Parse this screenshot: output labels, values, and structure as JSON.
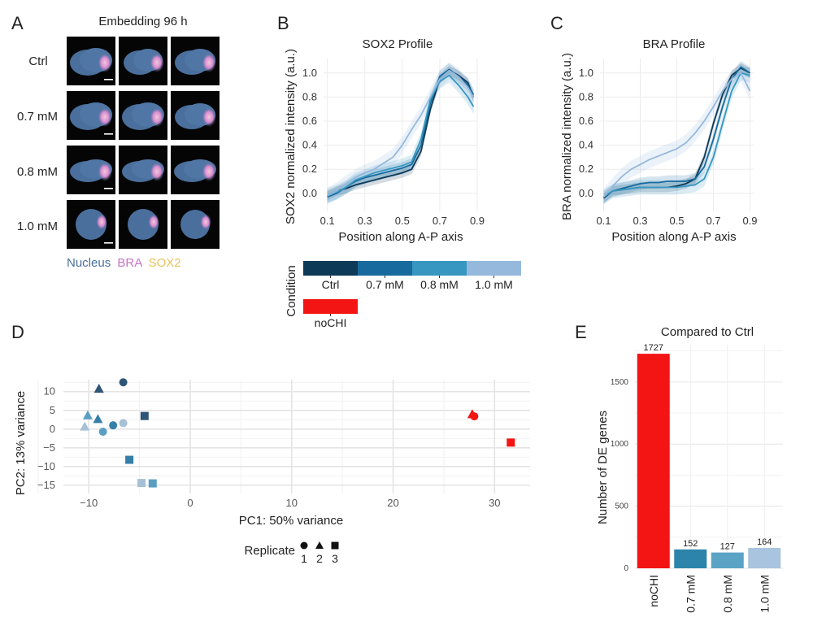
{
  "panel_letters": [
    "A",
    "B",
    "C",
    "D",
    "E"
  ],
  "panelA": {
    "title": "Embedding 96 h",
    "rows": [
      "Ctrl",
      "0.7 mM",
      "0.8 mM",
      "1.0 mM"
    ],
    "legend": [
      {
        "label": "Nucleus",
        "color": "#4a6f9c"
      },
      {
        "label": "BRA",
        "color": "#c873c8"
      },
      {
        "label": "SOX2",
        "color": "#e8c15a"
      }
    ]
  },
  "condition_legend": {
    "title": "Condition",
    "entries": [
      {
        "label": "Ctrl",
        "color": "#0d3a57"
      },
      {
        "label": "0.7 mM",
        "color": "#176a9e"
      },
      {
        "label": "0.8 mM",
        "color": "#3797c1"
      },
      {
        "label": "1.0 mM",
        "color": "#95b9dd"
      },
      {
        "label": "noCHI",
        "color": "#f31414"
      }
    ]
  },
  "replicate_legend": {
    "title": "Replicate",
    "entries": [
      {
        "label": "1",
        "shape": "circle"
      },
      {
        "label": "2",
        "shape": "triangle"
      },
      {
        "label": "3",
        "shape": "square"
      }
    ]
  },
  "chart_data": [
    {
      "id": "B",
      "type": "line",
      "title": "SOX2 Profile",
      "xlabel": "Position along A-P axis",
      "ylabel": "SOX2 normalized intensity (a.u.)",
      "xlim": [
        0.08,
        0.9
      ],
      "ylim": [
        -0.15,
        1.12
      ],
      "xticks": [
        "0.1",
        "0.3",
        "0.5",
        "0.7",
        "0.9"
      ],
      "yticks": [
        "0.0",
        "0.2",
        "0.4",
        "0.6",
        "0.8",
        "1.0"
      ],
      "grid": true,
      "x": [
        0.1,
        0.15,
        0.2,
        0.25,
        0.3,
        0.35,
        0.4,
        0.45,
        0.5,
        0.55,
        0.6,
        0.65,
        0.7,
        0.75,
        0.8,
        0.85,
        0.88
      ],
      "series": [
        {
          "name": "Ctrl",
          "color": "#0d3a57",
          "values": [
            -0.02,
            0.02,
            0.04,
            0.07,
            0.09,
            0.11,
            0.13,
            0.15,
            0.17,
            0.2,
            0.35,
            0.7,
            0.95,
            1.02,
            0.98,
            0.92,
            0.8
          ]
        },
        {
          "name": "0.7 mM",
          "color": "#176a9e",
          "values": [
            -0.03,
            0.0,
            0.05,
            0.1,
            0.13,
            0.15,
            0.17,
            0.19,
            0.21,
            0.24,
            0.4,
            0.75,
            0.97,
            1.03,
            0.97,
            0.9,
            0.82
          ]
        },
        {
          "name": "0.8 mM",
          "color": "#3797c1",
          "values": [
            -0.02,
            0.01,
            0.05,
            0.11,
            0.14,
            0.17,
            0.19,
            0.21,
            0.23,
            0.26,
            0.45,
            0.78,
            0.93,
            0.98,
            0.9,
            0.8,
            0.72
          ]
        },
        {
          "name": "1.0 mM",
          "color": "#95b9dd",
          "values": [
            -0.02,
            0.02,
            0.08,
            0.13,
            0.17,
            0.2,
            0.25,
            0.3,
            0.4,
            0.53,
            0.65,
            0.8,
            0.95,
            1.02,
            0.97,
            0.88,
            0.8
          ]
        }
      ]
    },
    {
      "id": "C",
      "type": "line",
      "title": "BRA Profile",
      "xlabel": "Position along A-P axis",
      "ylabel": "BRA normalized intensity (a.u.)",
      "xlim": [
        0.08,
        0.92
      ],
      "ylim": [
        -0.15,
        1.12
      ],
      "xticks": [
        "0.1",
        "0.3",
        "0.5",
        "0.7",
        "0.9"
      ],
      "yticks": [
        "0.0",
        "0.2",
        "0.4",
        "0.6",
        "0.8",
        "1.0"
      ],
      "grid": true,
      "x": [
        0.1,
        0.15,
        0.2,
        0.25,
        0.3,
        0.35,
        0.4,
        0.45,
        0.5,
        0.55,
        0.6,
        0.65,
        0.7,
        0.75,
        0.8,
        0.85,
        0.9
      ],
      "series": [
        {
          "name": "Ctrl",
          "color": "#0d3a57",
          "values": [
            -0.04,
            0.02,
            0.03,
            0.04,
            0.05,
            0.05,
            0.05,
            0.05,
            0.06,
            0.08,
            0.12,
            0.3,
            0.58,
            0.82,
            0.98,
            1.04,
            1.0
          ]
        },
        {
          "name": "0.7 mM",
          "color": "#176a9e",
          "values": [
            -0.03,
            0.02,
            0.04,
            0.06,
            0.08,
            0.09,
            0.09,
            0.1,
            0.1,
            0.1,
            0.12,
            0.22,
            0.45,
            0.72,
            0.95,
            1.05,
            1.0
          ]
        },
        {
          "name": "0.8 mM",
          "color": "#3797c1",
          "values": [
            -0.03,
            0.02,
            0.03,
            0.04,
            0.05,
            0.05,
            0.05,
            0.05,
            0.05,
            0.06,
            0.07,
            0.12,
            0.3,
            0.58,
            0.85,
            1.0,
            0.98
          ]
        },
        {
          "name": "1.0 mM",
          "color": "#95b9dd",
          "values": [
            -0.03,
            0.06,
            0.14,
            0.2,
            0.24,
            0.28,
            0.31,
            0.34,
            0.37,
            0.42,
            0.5,
            0.6,
            0.72,
            0.85,
            0.95,
            1.0,
            0.85
          ]
        }
      ]
    },
    {
      "id": "D",
      "type": "scatter",
      "xlabel": "PC1: 50% variance",
      "ylabel": "PC2: 13% variance",
      "xlim": [
        -12.5,
        33.5
      ],
      "ylim": [
        -17.2,
        13.2
      ],
      "xticks": [
        -10,
        0,
        10,
        20,
        30
      ],
      "xtick_labels": [
        "−10",
        "0",
        "10",
        "20",
        "30"
      ],
      "yticks": [
        10,
        5,
        0,
        -5,
        -10,
        -15
      ],
      "ytick_labels": [
        "10",
        "5",
        "0",
        "−5",
        "−10",
        "−15"
      ],
      "grid": true,
      "points": [
        {
          "x": -6.6,
          "y": 12.5,
          "cond": "Ctrl",
          "rep": 1
        },
        {
          "x": -9.0,
          "y": 10.8,
          "cond": "Ctrl",
          "rep": 2
        },
        {
          "x": -4.5,
          "y": 3.5,
          "cond": "Ctrl",
          "rep": 3
        },
        {
          "x": -7.6,
          "y": 1.0,
          "cond": "0.7 mM",
          "rep": 1
        },
        {
          "x": -9.1,
          "y": 2.7,
          "cond": "0.7 mM",
          "rep": 2
        },
        {
          "x": -6.0,
          "y": -8.2,
          "cond": "0.7 mM",
          "rep": 3
        },
        {
          "x": -8.6,
          "y": -0.7,
          "cond": "0.8 mM",
          "rep": 1
        },
        {
          "x": -10.1,
          "y": 3.7,
          "cond": "0.8 mM",
          "rep": 2
        },
        {
          "x": -3.7,
          "y": -14.5,
          "cond": "0.8 mM",
          "rep": 3
        },
        {
          "x": -6.6,
          "y": 1.6,
          "cond": "1.0 mM",
          "rep": 1
        },
        {
          "x": -10.4,
          "y": 0.7,
          "cond": "1.0 mM",
          "rep": 2
        },
        {
          "x": -4.8,
          "y": -14.4,
          "cond": "1.0 mM",
          "rep": 3
        },
        {
          "x": 28.0,
          "y": 3.4,
          "cond": "noCHI",
          "rep": 1
        },
        {
          "x": 27.8,
          "y": 4.0,
          "cond": "noCHI",
          "rep": 2
        },
        {
          "x": 31.6,
          "y": -3.6,
          "cond": "noCHI",
          "rep": 3
        }
      ]
    },
    {
      "id": "E",
      "type": "bar",
      "title": "Compared to Ctrl",
      "ylabel": "Number of DE genes",
      "categories": [
        "noCHI",
        "0.7 mM",
        "0.8 mM",
        "1.0 mM"
      ],
      "values": [
        1727,
        152,
        127,
        164
      ],
      "data_labels": [
        "1727",
        "152",
        "127",
        "164"
      ],
      "colors": [
        "#f31414",
        "#2d84ab",
        "#5aa3c5",
        "#a8c4de"
      ],
      "ylim": [
        0,
        1800
      ],
      "yticks": [
        0,
        500,
        1000,
        1500
      ],
      "ytick_labels": [
        "0",
        "500",
        "1000",
        "1500"
      ],
      "grid": true
    }
  ]
}
